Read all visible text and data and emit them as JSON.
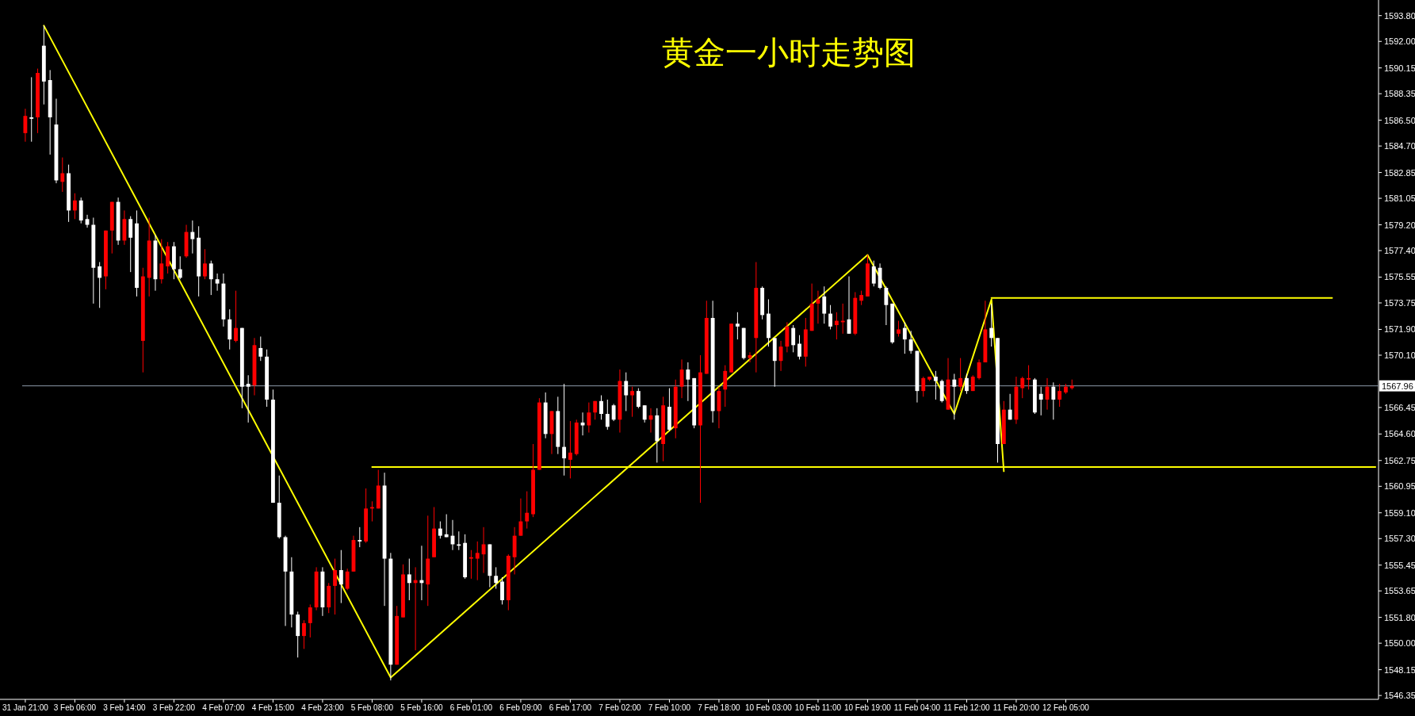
{
  "chart_data": {
    "type": "candlestick",
    "title": "黄金一小时走势图",
    "categories": [
      "31 Jan 21:00",
      null,
      null,
      null,
      null,
      null,
      null,
      null,
      "3 Feb 06:00",
      null,
      null,
      null,
      null,
      null,
      null,
      null,
      "3 Feb 14:00",
      null,
      null,
      null,
      null,
      null,
      null,
      null,
      "3 Feb 22:00",
      null,
      null,
      null,
      null,
      null,
      null,
      null,
      "4 Feb 07:00",
      null,
      null,
      null,
      null,
      null,
      null,
      null,
      "4 Feb 15:00",
      null,
      null,
      null,
      null,
      null,
      null,
      null,
      "4 Feb 23:00",
      null,
      null,
      null,
      null,
      null,
      null,
      null,
      "5 Feb 08:00",
      null,
      null,
      null,
      null,
      null,
      null,
      null,
      "5 Feb 16:00",
      null,
      null,
      null,
      null,
      null,
      null,
      null,
      "6 Feb 01:00",
      null,
      null,
      null,
      null,
      null,
      null,
      null,
      "6 Feb 09:00",
      null,
      null,
      null,
      null,
      null,
      null,
      null,
      "6 Feb 17:00",
      null,
      null,
      null,
      null,
      null,
      null,
      null,
      "7 Feb 02:00",
      null,
      null,
      null,
      null,
      null,
      null,
      null,
      "7 Feb 10:00",
      null,
      null,
      null,
      null,
      null,
      null,
      null,
      "7 Feb 18:00",
      null,
      null,
      null,
      null,
      null,
      null,
      null,
      "10 Feb 03:00",
      null,
      null,
      null,
      null,
      null,
      null,
      null,
      "10 Feb 11:00",
      null,
      null,
      null,
      null,
      null,
      null,
      null,
      "10 Feb 19:00",
      null,
      null,
      null,
      null,
      null,
      null,
      null,
      "11 Feb 04:00",
      null,
      null,
      null,
      null,
      null,
      null,
      null,
      "11 Feb 12:00",
      null,
      null,
      null,
      null,
      null,
      null,
      null,
      "11 Feb 20:00",
      null,
      null,
      null,
      null,
      null,
      null,
      null,
      "12 Feb 05:00",
      null,
      null,
      null,
      null,
      null,
      null,
      null,
      null,
      null,
      null,
      null,
      null,
      null,
      null,
      null,
      null,
      null,
      null,
      null,
      null,
      null,
      null,
      null,
      null,
      null,
      null,
      null,
      null,
      null,
      null,
      null,
      null,
      null,
      null,
      null,
      null,
      null,
      null,
      null,
      null,
      null,
      null,
      null,
      null,
      null,
      null,
      null,
      null,
      null,
      null
    ],
    "ohlc": [
      [
        1585.6,
        1587.3,
        1585.0,
        1586.8
      ],
      [
        1586.7,
        1589.5,
        1585.0,
        1586.6
      ],
      [
        1586.7,
        1590.1,
        1585.6,
        1589.8
      ],
      [
        1591.7,
        1593.1,
        1587.6,
        1589.2
      ],
      [
        1589.3,
        1590.0,
        1584.1,
        1586.7
      ],
      [
        1586.2,
        1588.0,
        1582.1,
        1582.3
      ],
      [
        1582.2,
        1583.9,
        1581.5,
        1582.8
      ],
      [
        1582.8,
        1583.4,
        1579.4,
        1580.2
      ],
      [
        1580.2,
        1581.4,
        1579.6,
        1580.9
      ],
      [
        1580.9,
        1581.1,
        1579.3,
        1579.5
      ],
      [
        1579.6,
        1579.9,
        1579.0,
        1579.2
      ],
      [
        1579.2,
        1579.7,
        1573.7,
        1576.2
      ],
      [
        1576.3,
        1576.6,
        1573.4,
        1575.5
      ],
      [
        1575.6,
        1578.8,
        1574.7,
        1578.8
      ],
      [
        1578.8,
        1580.8,
        1577.2,
        1580.8
      ],
      [
        1580.8,
        1581.1,
        1577.8,
        1578.1
      ],
      [
        1578.1,
        1580.2,
        1577.8,
        1579.6
      ],
      [
        1579.6,
        1579.8,
        1575.9,
        1578.3
      ],
      [
        1579.3,
        1580.2,
        1574.2,
        1574.8
      ],
      [
        1571.1,
        1576.2,
        1568.9,
        1575.6
      ],
      [
        1575.5,
        1579.7,
        1574.2,
        1578.1
      ],
      [
        1578.1,
        1578.5,
        1574.6,
        1575.4
      ],
      [
        1575.4,
        1578.2,
        1575.1,
        1576.5
      ],
      [
        1576.3,
        1578.0,
        1575.8,
        1577.7
      ],
      [
        1577.7,
        1578.0,
        1575.4,
        1576.1
      ],
      [
        1576.1,
        1577.0,
        1575.4,
        1575.5
      ],
      [
        1577.0,
        1579.2,
        1576.9,
        1578.7
      ],
      [
        1578.7,
        1579.5,
        1577.2,
        1578.2
      ],
      [
        1578.3,
        1579.1,
        1574.2,
        1575.6
      ],
      [
        1575.6,
        1577.5,
        1575.4,
        1576.5
      ],
      [
        1576.5,
        1576.7,
        1574.3,
        1575.4
      ],
      [
        1575.4,
        1575.8,
        1574.6,
        1575.1
      ],
      [
        1575.1,
        1575.8,
        1572.1,
        1572.6
      ],
      [
        1572.6,
        1573.3,
        1570.5,
        1571.2
      ],
      [
        1571.1,
        1574.6,
        1571.0,
        1572.0
      ],
      [
        1572.0,
        1572.0,
        1566.4,
        1567.9
      ],
      [
        1568.1,
        1568.7,
        1565.4,
        1567.9
      ],
      [
        1568.0,
        1571.3,
        1567.3,
        1570.8
      ],
      [
        1570.6,
        1571.4,
        1569.7,
        1570.0
      ],
      [
        1570.0,
        1570.5,
        1566.5,
        1567.0
      ],
      [
        1567.0,
        1567.7,
        1559.8,
        1559.8
      ],
      [
        1559.8,
        1561.7,
        1557.3,
        1557.4
      ],
      [
        1557.4,
        1557.5,
        1551.2,
        1555.0
      ],
      [
        1555.0,
        1556.0,
        1551.1,
        1552.0
      ],
      [
        1552.0,
        1552.2,
        1549.0,
        1550.5
      ],
      [
        1550.5,
        1551.6,
        1549.6,
        1551.4
      ],
      [
        1551.4,
        1552.7,
        1550.4,
        1552.5
      ],
      [
        1552.5,
        1555.3,
        1552.3,
        1555.0
      ],
      [
        1555.0,
        1555.3,
        1551.9,
        1552.5
      ],
      [
        1552.5,
        1554.2,
        1552.1,
        1554.0
      ],
      [
        1554.0,
        1555.9,
        1552.0,
        1555.1
      ],
      [
        1555.1,
        1556.5,
        1552.8,
        1554.1
      ],
      [
        1553.8,
        1555.2,
        1553.7,
        1555.0
      ],
      [
        1555.0,
        1557.5,
        1555.0,
        1557.2
      ],
      [
        1557.2,
        1558.1,
        1556.7,
        1557.1
      ],
      [
        1557.1,
        1560.8,
        1557.0,
        1559.4
      ],
      [
        1559.4,
        1559.9,
        1558.5,
        1559.5
      ],
      [
        1559.4,
        1562.1,
        1559.4,
        1561.0
      ],
      [
        1561.0,
        1561.9,
        1552.6,
        1555.9
      ],
      [
        1555.9,
        1556.3,
        1547.4,
        1548.5
      ],
      [
        1548.5,
        1552.6,
        1548.5,
        1551.9
      ],
      [
        1551.8,
        1555.5,
        1551.8,
        1554.8
      ],
      [
        1554.8,
        1555.9,
        1553.0,
        1554.2
      ],
      [
        1554.2,
        1555.3,
        1549.5,
        1554.4
      ],
      [
        1554.4,
        1556.8,
        1553.0,
        1554.2
      ],
      [
        1554.1,
        1558.9,
        1552.6,
        1555.9
      ],
      [
        1556.0,
        1559.5,
        1556.0,
        1558.0
      ],
      [
        1558.0,
        1558.5,
        1557.3,
        1557.5
      ],
      [
        1557.6,
        1559.0,
        1557.4,
        1557.4
      ],
      [
        1557.5,
        1558.6,
        1556.5,
        1556.9
      ],
      [
        1556.9,
        1557.8,
        1556.5,
        1556.8
      ],
      [
        1557.0,
        1557.6,
        1554.5,
        1554.6
      ],
      [
        1555.9,
        1556.5,
        1554.5,
        1556.0
      ],
      [
        1555.9,
        1557.1,
        1554.4,
        1556.3
      ],
      [
        1556.2,
        1558.1,
        1554.9,
        1556.9
      ],
      [
        1556.9,
        1556.9,
        1553.9,
        1554.7
      ],
      [
        1554.7,
        1555.3,
        1553.8,
        1554.2
      ],
      [
        1554.3,
        1554.6,
        1552.7,
        1553.0
      ],
      [
        1553.0,
        1556.2,
        1552.3,
        1556.1
      ],
      [
        1556.0,
        1558.1,
        1554.8,
        1557.5
      ],
      [
        1557.5,
        1560.1,
        1557.5,
        1558.5
      ],
      [
        1558.5,
        1560.6,
        1558.0,
        1559.1
      ],
      [
        1559.0,
        1563.9,
        1558.8,
        1562.1
      ],
      [
        1562.1,
        1567.1,
        1562.1,
        1566.8
      ],
      [
        1566.8,
        1567.5,
        1564.3,
        1564.6
      ],
      [
        1564.6,
        1566.2,
        1563.2,
        1566.2
      ],
      [
        1566.2,
        1567.2,
        1563.2,
        1563.7
      ],
      [
        1563.7,
        1568.1,
        1561.7,
        1562.9
      ],
      [
        1562.8,
        1565.5,
        1561.5,
        1563.3
      ],
      [
        1563.2,
        1565.6,
        1563.1,
        1565.4
      ],
      [
        1565.4,
        1566.1,
        1564.5,
        1565.2
      ],
      [
        1565.2,
        1566.8,
        1564.7,
        1566.1
      ],
      [
        1566.1,
        1566.9,
        1565.6,
        1566.9
      ],
      [
        1566.9,
        1567.3,
        1565.6,
        1566.0
      ],
      [
        1566.0,
        1567.0,
        1564.9,
        1565.1
      ],
      [
        1566.6,
        1566.7,
        1565.5,
        1565.6
      ],
      [
        1565.6,
        1569.1,
        1564.7,
        1568.3
      ],
      [
        1568.3,
        1568.9,
        1566.2,
        1567.3
      ],
      [
        1567.3,
        1567.9,
        1565.8,
        1567.6
      ],
      [
        1567.6,
        1567.8,
        1566.4,
        1566.5
      ],
      [
        1566.6,
        1566.6,
        1565.4,
        1565.6
      ],
      [
        1565.6,
        1566.4,
        1564.7,
        1565.9
      ],
      [
        1565.9,
        1566.4,
        1562.6,
        1564.1
      ],
      [
        1563.9,
        1567.2,
        1562.7,
        1566.6
      ],
      [
        1566.5,
        1567.8,
        1564.8,
        1564.9
      ],
      [
        1565.0,
        1568.4,
        1564.3,
        1567.9
      ],
      [
        1567.9,
        1569.8,
        1567.1,
        1569.1
      ],
      [
        1569.1,
        1569.6,
        1566.9,
        1568.4
      ],
      [
        1568.5,
        1568.5,
        1565.0,
        1565.2
      ],
      [
        1565.2,
        1570.1,
        1559.8,
        1568.9
      ],
      [
        1568.8,
        1573.9,
        1568.8,
        1572.7
      ],
      [
        1572.7,
        1573.9,
        1565.4,
        1566.2
      ],
      [
        1566.2,
        1567.9,
        1565.0,
        1567.6
      ],
      [
        1567.7,
        1569.4,
        1566.5,
        1569.0
      ],
      [
        1568.9,
        1572.3,
        1568.9,
        1572.3
      ],
      [
        1572.3,
        1573.1,
        1571.2,
        1572.1
      ],
      [
        1572.0,
        1572.0,
        1569.8,
        1569.9
      ],
      [
        1569.9,
        1570.3,
        1569.6,
        1570.1
      ],
      [
        1571.3,
        1576.6,
        1568.9,
        1574.8
      ],
      [
        1574.8,
        1574.9,
        1572.6,
        1572.9
      ],
      [
        1573.0,
        1574.0,
        1570.7,
        1571.3
      ],
      [
        1571.3,
        1571.3,
        1567.9,
        1569.7
      ],
      [
        1569.7,
        1571.1,
        1569.0,
        1570.7
      ],
      [
        1570.7,
        1572.4,
        1570.3,
        1572.1
      ],
      [
        1572.0,
        1572.2,
        1570.3,
        1570.8
      ],
      [
        1570.9,
        1571.5,
        1569.8,
        1570.0
      ],
      [
        1570.0,
        1572.7,
        1569.3,
        1571.9
      ],
      [
        1571.8,
        1575.1,
        1571.8,
        1573.7
      ],
      [
        1573.7,
        1574.6,
        1572.3,
        1574.0
      ],
      [
        1574.2,
        1574.9,
        1572.3,
        1573.0
      ],
      [
        1573.0,
        1573.6,
        1571.9,
        1572.1
      ],
      [
        1572.2,
        1573.1,
        1571.2,
        1572.5
      ],
      [
        1572.4,
        1573.7,
        1571.6,
        1572.5
      ],
      [
        1572.6,
        1575.6,
        1571.6,
        1571.6
      ],
      [
        1571.6,
        1574.5,
        1571.5,
        1574.1
      ],
      [
        1573.9,
        1574.6,
        1573.6,
        1574.3
      ],
      [
        1574.2,
        1577.1,
        1574.2,
        1576.5
      ],
      [
        1576.3,
        1576.7,
        1574.9,
        1575.1
      ],
      [
        1576.2,
        1576.5,
        1574.7,
        1574.8
      ],
      [
        1574.8,
        1574.9,
        1572.2,
        1573.6
      ],
      [
        1573.7,
        1573.7,
        1570.9,
        1571.0
      ],
      [
        1571.6,
        1572.5,
        1571.4,
        1571.9
      ],
      [
        1572.0,
        1572.4,
        1570.2,
        1571.2
      ],
      [
        1571.2,
        1571.8,
        1570.2,
        1570.4
      ],
      [
        1570.4,
        1570.4,
        1566.8,
        1567.6
      ],
      [
        1567.6,
        1568.6,
        1567.2,
        1568.5
      ],
      [
        1568.4,
        1568.6,
        1568.3,
        1568.6
      ],
      [
        1568.6,
        1569.0,
        1567.0,
        1568.3
      ],
      [
        1568.3,
        1568.4,
        1566.8,
        1566.9
      ],
      [
        1566.3,
        1569.9,
        1566.3,
        1568.4
      ],
      [
        1568.4,
        1568.8,
        1565.6,
        1567.9
      ],
      [
        1567.9,
        1569.9,
        1567.6,
        1568.5
      ],
      [
        1568.5,
        1568.8,
        1567.4,
        1567.6
      ],
      [
        1567.6,
        1568.7,
        1567.6,
        1568.6
      ],
      [
        1568.5,
        1569.8,
        1568.4,
        1569.6
      ],
      [
        1569.6,
        1573.9,
        1569.6,
        1571.9
      ],
      [
        1572.0,
        1573.7,
        1570.7,
        1571.3
      ],
      [
        1571.3,
        1571.3,
        1562.6,
        1563.9
      ],
      [
        1563.9,
        1566.9,
        1563.9,
        1566.3
      ],
      [
        1566.3,
        1567.4,
        1565.6,
        1565.6
      ],
      [
        1565.6,
        1568.6,
        1565.3,
        1567.9
      ],
      [
        1567.8,
        1568.6,
        1567.1,
        1568.5
      ],
      [
        1568.4,
        1569.4,
        1567.7,
        1568.5
      ],
      [
        1568.4,
        1568.5,
        1566.0,
        1566.1
      ],
      [
        1567.4,
        1567.9,
        1565.9,
        1567.0
      ],
      [
        1567.0,
        1568.5,
        1566.3,
        1567.9
      ],
      [
        1567.9,
        1568.2,
        1565.6,
        1567.0
      ],
      [
        1567.0,
        1568.1,
        1566.5,
        1567.6
      ],
      [
        1567.5,
        1568.1,
        1567.4,
        1567.9
      ],
      [
        1567.8,
        1568.4,
        1567.7,
        1567.96
      ],
      null,
      null,
      null,
      null,
      null,
      null,
      null,
      null,
      null,
      null,
      null,
      null,
      null,
      null,
      null,
      null,
      null,
      null,
      null,
      null,
      null,
      null,
      null,
      null,
      null,
      null,
      null,
      null,
      null,
      null,
      null,
      null,
      null,
      null,
      null,
      null,
      null,
      null,
      null,
      null,
      null,
      null,
      null,
      null,
      null,
      null,
      null,
      null,
      null
    ],
    "series": [
      {
        "type": "line",
        "color": "#ffff00",
        "values": [
          null,
          null,
          null,
          1593.1,
          null,
          null,
          null,
          null,
          null,
          null,
          null,
          null,
          null,
          null,
          null,
          null,
          null,
          null,
          null,
          null,
          null,
          null,
          null,
          null,
          null,
          null,
          null,
          null,
          null,
          null,
          null,
          null,
          null,
          null,
          null,
          null,
          null,
          null,
          null,
          null,
          null,
          null,
          null,
          null,
          null,
          null,
          null,
          null,
          null,
          null,
          null,
          null,
          null,
          null,
          null,
          null,
          null,
          null,
          null,
          1547.6,
          null,
          null,
          null,
          null,
          null,
          null,
          null,
          null,
          null,
          null,
          null,
          null,
          null,
          null,
          null,
          null,
          null,
          null,
          null,
          null,
          null,
          null,
          null,
          null,
          null,
          null,
          null,
          null,
          null,
          null,
          null,
          null,
          null,
          null,
          null,
          null,
          null,
          null,
          null,
          null,
          null,
          null,
          null,
          null,
          null,
          null,
          null,
          null,
          null,
          null,
          null,
          null,
          null,
          null,
          null,
          null,
          null,
          null,
          null,
          null,
          null,
          null,
          null,
          null,
          null,
          null,
          null,
          null,
          null,
          null,
          null,
          null,
          null,
          null,
          null,
          null,
          1577.1,
          null,
          null,
          null,
          null,
          null,
          null,
          null,
          null,
          null,
          null,
          null,
          null,
          null,
          1566.0,
          null,
          null,
          null,
          null,
          null,
          1574.0,
          null,
          1562.0,
          null,
          null,
          null,
          null,
          null,
          null,
          null,
          null,
          null,
          null,
          null,
          null,
          null,
          null,
          null,
          null,
          null,
          null,
          null,
          null,
          null,
          null,
          null,
          null,
          null,
          null,
          null,
          null,
          null,
          null,
          null,
          null,
          null,
          null,
          null,
          null,
          null,
          null,
          null,
          null,
          null,
          null,
          null,
          null,
          null,
          null,
          null,
          null,
          null,
          null,
          null,
          null,
          null,
          null,
          null,
          null,
          null,
          null,
          null,
          null
        ]
      },
      {
        "type": "line",
        "color": "#ffff00",
        "values": [
          null,
          null,
          null,
          null,
          null,
          null,
          null,
          null,
          null,
          null,
          null,
          null,
          null,
          null,
          null,
          null,
          null,
          null,
          null,
          null,
          null,
          null,
          null,
          null,
          null,
          null,
          null,
          null,
          null,
          null,
          null,
          null,
          null,
          null,
          null,
          null,
          null,
          null,
          null,
          null,
          null,
          null,
          null,
          null,
          null,
          null,
          null,
          null,
          null,
          null,
          null,
          null,
          null,
          null,
          null,
          null,
          null,
          null,
          null,
          null,
          null,
          null,
          null,
          null,
          null,
          null,
          null,
          null,
          null,
          null,
          null,
          null,
          null,
          null,
          null,
          null,
          null,
          null,
          null,
          null,
          null,
          null,
          null,
          null,
          null,
          null,
          null,
          null,
          null,
          null,
          null,
          null,
          null,
          null,
          null,
          null,
          null,
          null,
          null,
          null,
          null,
          null,
          null,
          null,
          null,
          null,
          null,
          null,
          null,
          null,
          null,
          null,
          null,
          null,
          null,
          null,
          null,
          null,
          null,
          null,
          null,
          null,
          null,
          null,
          null,
          null,
          null,
          null,
          null,
          null,
          null,
          null,
          null,
          null,
          null,
          null,
          null,
          null,
          null,
          null,
          null,
          null,
          null,
          null,
          null,
          null,
          null,
          null,
          null,
          null,
          null,
          null,
          null,
          null,
          null,
          null,
          1574.1,
          null,
          null,
          null,
          null,
          null,
          null,
          null,
          null,
          null,
          null,
          null,
          null,
          null,
          null,
          null,
          null,
          null,
          null,
          null,
          null,
          null,
          null,
          null,
          null,
          null,
          null,
          null,
          null,
          null,
          null,
          null,
          null,
          null,
          null,
          null,
          null,
          null,
          null,
          null,
          null,
          null,
          null,
          null,
          null,
          null,
          null,
          null,
          null,
          null,
          null,
          null,
          null,
          null,
          null,
          1574.1,
          null,
          null,
          null,
          null,
          null,
          null,
          null
        ]
      },
      {
        "type": "line",
        "color": "#ffff00",
        "values": [
          null,
          null,
          null,
          null,
          null,
          null,
          null,
          null,
          null,
          null,
          null,
          null,
          null,
          null,
          null,
          null,
          null,
          null,
          null,
          null,
          null,
          null,
          null,
          null,
          null,
          null,
          null,
          null,
          null,
          null,
          null,
          null,
          null,
          null,
          null,
          null,
          null,
          null,
          null,
          null,
          null,
          null,
          null,
          null,
          null,
          null,
          null,
          null,
          null,
          null,
          null,
          null,
          null,
          null,
          null,
          null,
          1562.3,
          null,
          null,
          null,
          null,
          null,
          null,
          null,
          null,
          null,
          null,
          null,
          null,
          null,
          null,
          null,
          null,
          null,
          null,
          null,
          null,
          null,
          null,
          null,
          null,
          null,
          null,
          null,
          null,
          null,
          null,
          null,
          null,
          null,
          null,
          null,
          null,
          null,
          null,
          null,
          null,
          null,
          null,
          null,
          null,
          null,
          null,
          null,
          null,
          null,
          null,
          null,
          null,
          null,
          null,
          null,
          null,
          null,
          null,
          null,
          null,
          null,
          null,
          null,
          null,
          null,
          null,
          null,
          null,
          null,
          null,
          null,
          null,
          null,
          null,
          null,
          null,
          null,
          null,
          null,
          null,
          null,
          null,
          null,
          null,
          null,
          null,
          null,
          null,
          null,
          null,
          null,
          null,
          null,
          null,
          null,
          null,
          null,
          null,
          null,
          null,
          null,
          null,
          null,
          null,
          null,
          null,
          null,
          null,
          null,
          null,
          null,
          null,
          null,
          null,
          null,
          null,
          null,
          null,
          null,
          null,
          null,
          null,
          null,
          null,
          null,
          null,
          null,
          null,
          null,
          null,
          null,
          null,
          null,
          null,
          null,
          null,
          null,
          null,
          null,
          null,
          null,
          null,
          null,
          null,
          null,
          null,
          null,
          null,
          null,
          null,
          null,
          null,
          null,
          null,
          null,
          null,
          null,
          null,
          null,
          null,
          null,
          1562.3
        ]
      }
    ],
    "ref_lines": [
      {
        "axis": "y",
        "value": 1567.96,
        "label": "1567.96",
        "color": "#8c9aa8"
      }
    ],
    "ylim": [
      1546.08,
      1594.89
    ],
    "yticks": [
      {
        "value": 1546.35,
        "label": "1546.35"
      },
      {
        "value": 1548.15,
        "label": "1548.15"
      },
      {
        "value": 1550.0,
        "label": "1550.00"
      },
      {
        "value": 1551.8,
        "label": "1551.80"
      },
      {
        "value": 1553.65,
        "label": "1553.65"
      },
      {
        "value": 1555.45,
        "label": "1555.45"
      },
      {
        "value": 1557.3,
        "label": "1557.30"
      },
      {
        "value": 1559.1,
        "label": "1559.10"
      },
      {
        "value": 1560.95,
        "label": "1560.95"
      },
      {
        "value": 1562.75,
        "label": "1562.75"
      },
      {
        "value": 1564.6,
        "label": "1564.60"
      },
      {
        "value": 1566.45,
        "label": "1566.45"
      },
      {
        "value": 1570.1,
        "label": "1570.10"
      },
      {
        "value": 1571.9,
        "label": "1571.90"
      },
      {
        "value": 1573.75,
        "label": "1573.75"
      },
      {
        "value": 1575.55,
        "label": "1575.55"
      },
      {
        "value": 1577.4,
        "label": "1577.40"
      },
      {
        "value": 1579.2,
        "label": "1579.20"
      },
      {
        "value": 1581.05,
        "label": "1581.05"
      },
      {
        "value": 1582.85,
        "label": "1582.85"
      },
      {
        "value": 1584.7,
        "label": "1584.70"
      },
      {
        "value": 1586.5,
        "label": "1586.50"
      },
      {
        "value": 1588.35,
        "label": "1588.35"
      },
      {
        "value": 1590.15,
        "label": "1590.15"
      },
      {
        "value": 1592.0,
        "label": "1592.00"
      },
      {
        "value": 1593.8,
        "label": "1593.80"
      }
    ]
  }
}
